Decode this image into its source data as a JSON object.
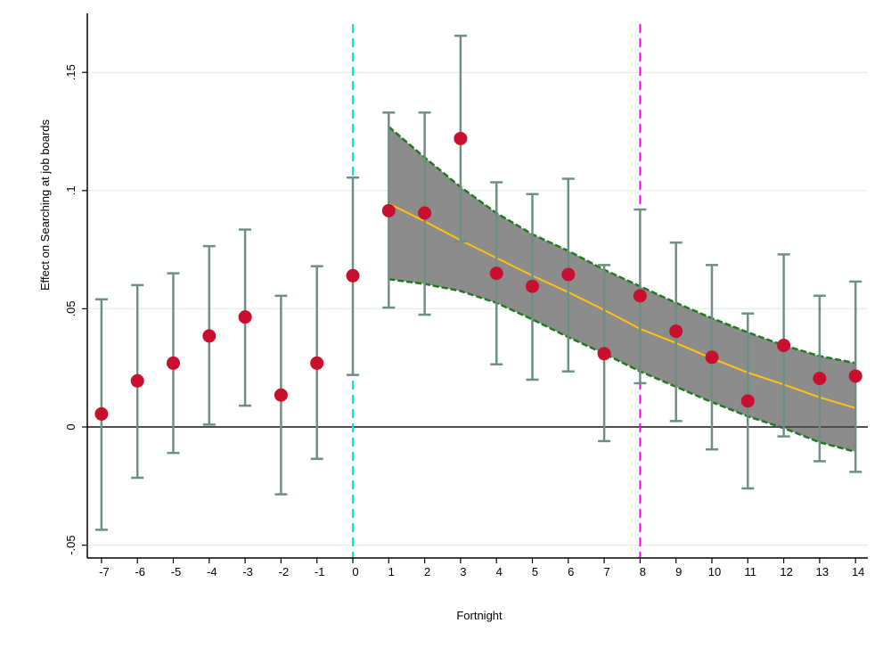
{
  "chart_data": {
    "type": "scatter",
    "title": "",
    "xlabel": "Fortnight",
    "ylabel": "Effect on Searching at job boards",
    "xlim": [
      -7,
      14
    ],
    "ylim": [
      -0.05,
      0.15
    ],
    "x_ticks": [
      -7,
      -6,
      -5,
      -4,
      -3,
      -2,
      -1,
      0,
      1,
      2,
      3,
      4,
      5,
      6,
      7,
      8,
      9,
      10,
      11,
      12,
      13,
      14
    ],
    "x_tick_labels": [
      "-7",
      "-6",
      "-5",
      "-4",
      "-3",
      "-2",
      "-1",
      "0",
      "1",
      "2",
      "3",
      "4",
      "5",
      "6",
      "7",
      "8",
      "9",
      "10",
      "11",
      "12",
      "13",
      "14"
    ],
    "y_ticks": [
      -0.05,
      0,
      0.05,
      0.1,
      0.15
    ],
    "y_tick_labels": [
      "-.05",
      "0",
      ".05",
      ".1",
      ".15"
    ],
    "grid": "horizontal",
    "points": [
      {
        "x": -7,
        "y": 0.0055,
        "lo": -0.0435,
        "hi": 0.054
      },
      {
        "x": -6,
        "y": 0.0195,
        "lo": -0.0215,
        "hi": 0.06
      },
      {
        "x": -5,
        "y": 0.027,
        "lo": -0.011,
        "hi": 0.065
      },
      {
        "x": -4,
        "y": 0.0385,
        "lo": 0.001,
        "hi": 0.0765
      },
      {
        "x": -3,
        "y": 0.0465,
        "lo": 0.009,
        "hi": 0.0835
      },
      {
        "x": -2,
        "y": 0.0135,
        "lo": -0.0285,
        "hi": 0.0555
      },
      {
        "x": -1,
        "y": 0.027,
        "lo": -0.0135,
        "hi": 0.068
      },
      {
        "x": 0,
        "y": 0.064,
        "lo": 0.022,
        "hi": 0.1055
      },
      {
        "x": 1,
        "y": 0.0915,
        "lo": 0.0505,
        "hi": 0.133
      },
      {
        "x": 2,
        "y": 0.0905,
        "lo": 0.0475,
        "hi": 0.133
      },
      {
        "x": 3,
        "y": 0.122,
        "lo": 0.0785,
        "hi": 0.1655
      },
      {
        "x": 4,
        "y": 0.065,
        "lo": 0.0265,
        "hi": 0.1035
      },
      {
        "x": 5,
        "y": 0.0595,
        "lo": 0.02,
        "hi": 0.0985
      },
      {
        "x": 6,
        "y": 0.0645,
        "lo": 0.0235,
        "hi": 0.105
      },
      {
        "x": 7,
        "y": 0.031,
        "lo": -0.006,
        "hi": 0.0685
      },
      {
        "x": 8,
        "y": 0.0555,
        "lo": 0.0185,
        "hi": 0.092
      },
      {
        "x": 9,
        "y": 0.0405,
        "lo": 0.0025,
        "hi": 0.078
      },
      {
        "x": 10,
        "y": 0.0295,
        "lo": -0.0095,
        "hi": 0.0685
      },
      {
        "x": 11,
        "y": 0.011,
        "lo": -0.026,
        "hi": 0.048
      },
      {
        "x": 12,
        "y": 0.0345,
        "lo": -0.004,
        "hi": 0.073
      },
      {
        "x": 13,
        "y": 0.0205,
        "lo": -0.0145,
        "hi": 0.0555
      },
      {
        "x": 14,
        "y": 0.0215,
        "lo": -0.019,
        "hi": 0.0615
      }
    ],
    "fit_band": [
      {
        "x": 1,
        "fit": 0.0945,
        "lo": 0.0625,
        "hi": 0.127
      },
      {
        "x": 2,
        "fit": 0.087,
        "lo": 0.0605,
        "hi": 0.114
      },
      {
        "x": 3,
        "fit": 0.079,
        "lo": 0.0575,
        "hi": 0.1015
      },
      {
        "x": 4,
        "fit": 0.0715,
        "lo": 0.0525,
        "hi": 0.0905
      },
      {
        "x": 5,
        "fit": 0.064,
        "lo": 0.0455,
        "hi": 0.0815
      },
      {
        "x": 6,
        "fit": 0.057,
        "lo": 0.038,
        "hi": 0.0745
      },
      {
        "x": 7,
        "fit": 0.0495,
        "lo": 0.031,
        "hi": 0.0665
      },
      {
        "x": 8,
        "fit": 0.0415,
        "lo": 0.0235,
        "hi": 0.0595
      },
      {
        "x": 9,
        "fit": 0.0355,
        "lo": 0.017,
        "hi": 0.0525
      },
      {
        "x": 10,
        "fit": 0.029,
        "lo": 0.0105,
        "hi": 0.046
      },
      {
        "x": 11,
        "fit": 0.023,
        "lo": 0.0045,
        "hi": 0.04
      },
      {
        "x": 12,
        "fit": 0.018,
        "lo": -0.0005,
        "hi": 0.0345
      },
      {
        "x": 13,
        "fit": 0.0125,
        "lo": -0.0065,
        "hi": 0.03
      },
      {
        "x": 14,
        "fit": 0.008,
        "lo": -0.0105,
        "hi": 0.027
      }
    ],
    "vertical_lines": [
      {
        "x": 0,
        "color": "#00e5ee",
        "style": "dashed"
      },
      {
        "x": 8,
        "color": "#ff00ff",
        "style": "dashed"
      }
    ],
    "colors": {
      "point": "#c8102e",
      "errorbar": "#6f8f85",
      "band_fill": "#8c8c8c",
      "band_edge": "#1f7a1f",
      "fit_line": "#ffc20e",
      "zero_line": "#4d4d4d",
      "grid": "#e4ecec"
    }
  }
}
